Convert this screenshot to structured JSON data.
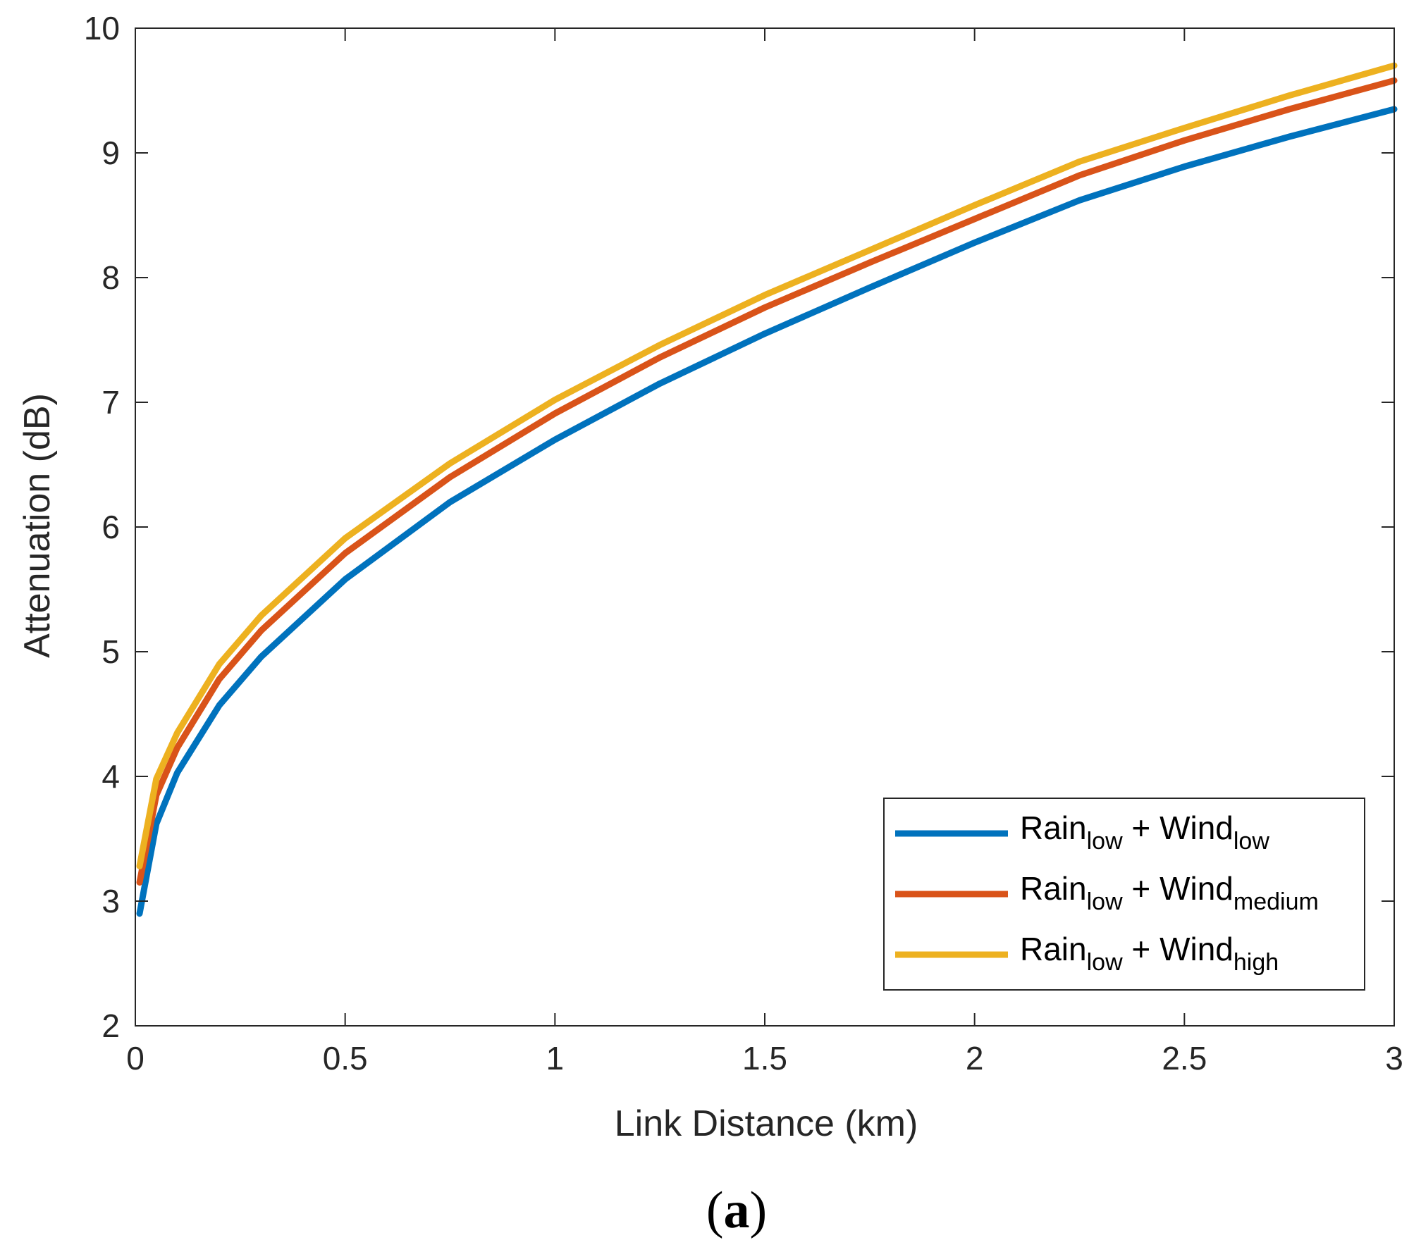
{
  "chart_data": {
    "type": "line",
    "xlabel": "Link Distance (km)",
    "ylabel": "Attenuation (dB)",
    "xlim": [
      0,
      3
    ],
    "ylim": [
      2,
      10
    ],
    "xticks": [
      0,
      0.5,
      1,
      1.5,
      2,
      2.5,
      3
    ],
    "xtick_labels": [
      "0",
      "0.5",
      "1",
      "1.5",
      "2",
      "2.5",
      "3"
    ],
    "yticks": [
      2,
      3,
      4,
      5,
      6,
      7,
      8,
      9,
      10
    ],
    "ytick_labels": [
      "2",
      "3",
      "4",
      "5",
      "6",
      "7",
      "8",
      "9",
      "10"
    ],
    "grid": false,
    "legend_position": "bottom-right",
    "x": [
      0.01,
      0.05,
      0.1,
      0.2,
      0.3,
      0.5,
      0.75,
      1.0,
      1.25,
      1.5,
      1.75,
      2.0,
      2.25,
      2.5,
      2.75,
      3.0
    ],
    "series": [
      {
        "name": "Rain low + Wind low",
        "label_main": "Rain",
        "label_sub1": "low",
        "label_mid": " + Wind",
        "label_sub2": "low",
        "color": "#0072BD",
        "values": [
          2.9,
          3.62,
          4.03,
          4.57,
          4.96,
          5.58,
          6.2,
          6.7,
          7.15,
          7.55,
          7.92,
          8.28,
          8.62,
          8.89,
          9.13,
          9.35
        ]
      },
      {
        "name": "Rain low + Wind medium",
        "label_main": "Rain",
        "label_sub1": "low",
        "label_mid": " + Wind",
        "label_sub2": "medium",
        "color": "#D95319",
        "values": [
          3.15,
          3.85,
          4.23,
          4.78,
          5.17,
          5.79,
          6.4,
          6.91,
          7.36,
          7.76,
          8.12,
          8.47,
          8.82,
          9.1,
          9.35,
          9.58
        ]
      },
      {
        "name": "Rain low + Wind high",
        "label_main": "Rain",
        "label_sub1": "low",
        "label_mid": " + Wind",
        "label_sub2": "high",
        "color": "#EDB120",
        "values": [
          3.28,
          3.98,
          4.35,
          4.9,
          5.29,
          5.91,
          6.51,
          7.02,
          7.46,
          7.86,
          8.22,
          8.58,
          8.93,
          9.2,
          9.46,
          9.7
        ]
      }
    ]
  },
  "caption": {
    "open": "(",
    "letter": "a",
    "close": ")"
  }
}
